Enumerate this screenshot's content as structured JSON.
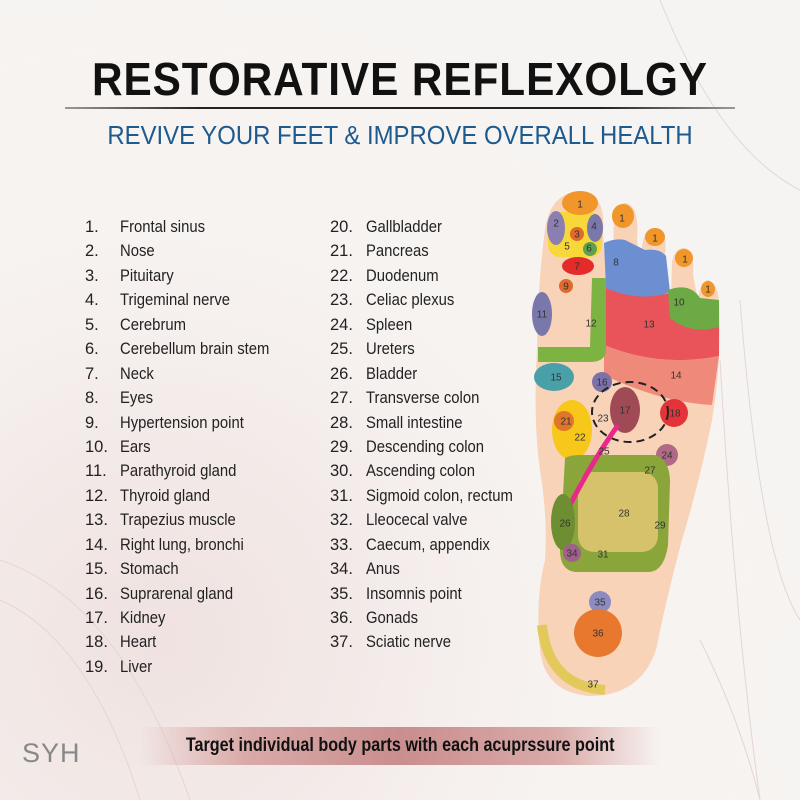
{
  "header": {
    "title": "RESTORATIVE REFLEXOLGY",
    "subtitle": "REVIVE YOUR FEET & IMPROVE OVERALL HEALTH"
  },
  "legend": {
    "column1": [
      {
        "num": "1.",
        "label": "Frontal sinus"
      },
      {
        "num": "2.",
        "label": "Nose"
      },
      {
        "num": "3.",
        "label": "Pituitary"
      },
      {
        "num": "4.",
        "label": "Trigeminal nerve"
      },
      {
        "num": "5.",
        "label": "Cerebrum"
      },
      {
        "num": "6.",
        "label": "Cerebellum brain stem"
      },
      {
        "num": "7.",
        "label": "Neck"
      },
      {
        "num": "8.",
        "label": "Eyes"
      },
      {
        "num": "9.",
        "label": "Hypertension point"
      },
      {
        "num": "10.",
        "label": "Ears"
      },
      {
        "num": "11.",
        "label": "Parathyroid gland"
      },
      {
        "num": "12.",
        "label": "Thyroid gland"
      },
      {
        "num": "13.",
        "label": "Trapezius muscle"
      },
      {
        "num": "14.",
        "label": "Right lung, bronchi"
      },
      {
        "num": "15.",
        "label": "Stomach"
      },
      {
        "num": "16.",
        "label": "Suprarenal gland"
      },
      {
        "num": "17.",
        "label": "Kidney"
      },
      {
        "num": "18.",
        "label": "Heart"
      },
      {
        "num": "19.",
        "label": "Liver"
      }
    ],
    "column2": [
      {
        "num": "20.",
        "label": "Gallbladder"
      },
      {
        "num": "21.",
        "label": "Pancreas"
      },
      {
        "num": "22.",
        "label": "Duodenum"
      },
      {
        "num": "23.",
        "label": "Celiac plexus"
      },
      {
        "num": "24.",
        "label": "Spleen"
      },
      {
        "num": "25.",
        "label": "Ureters"
      },
      {
        "num": "26.",
        "label": "Bladder"
      },
      {
        "num": "27.",
        "label": "Transverse colon"
      },
      {
        "num": "28.",
        "label": "Small intestine"
      },
      {
        "num": "29.",
        "label": "Descending colon"
      },
      {
        "num": "30.",
        "label": "Ascending colon"
      },
      {
        "num": "31.",
        "label": "Sigmoid colon, rectum"
      },
      {
        "num": "32.",
        "label": "Lleocecal valve"
      },
      {
        "num": "33.",
        "label": "Caecum, appendix"
      },
      {
        "num": "34.",
        "label": "Anus"
      },
      {
        "num": "35.",
        "label": "Insomnis point"
      },
      {
        "num": "36.",
        "label": "Gonads"
      },
      {
        "num": "37.",
        "label": "Sciatic nerve"
      }
    ]
  },
  "foot": {
    "labels": {
      "z1a": "1",
      "z1b": "1",
      "z1c": "1",
      "z1d": "1",
      "z1e": "1",
      "z2": "2",
      "z3": "3",
      "z4": "4",
      "z5": "5",
      "z6": "6",
      "z7": "7",
      "z8": "8",
      "z9": "9",
      "z10": "10",
      "z11": "11",
      "z12": "12",
      "z13": "13",
      "z14": "14",
      "z15": "15",
      "z16": "16",
      "z17": "17",
      "z18": "18",
      "z21": "21",
      "z22": "22",
      "z23": "23",
      "z24": "24",
      "z25": "25",
      "z26": "26",
      "z27": "27",
      "z28": "28",
      "z29": "29",
      "z31": "31",
      "z34": "34",
      "z35": "35",
      "z36": "36",
      "z37": "37"
    },
    "colors": {
      "skin": "#f8d3b8",
      "orange": "#f0962a",
      "red": "#e52a2a",
      "green": "#7cb342",
      "blue": "#6b8fd0",
      "ureter": "#e8288a"
    }
  },
  "footer": {
    "banner": "Target individual body parts with each acuprssure point",
    "brand": "SYH"
  }
}
